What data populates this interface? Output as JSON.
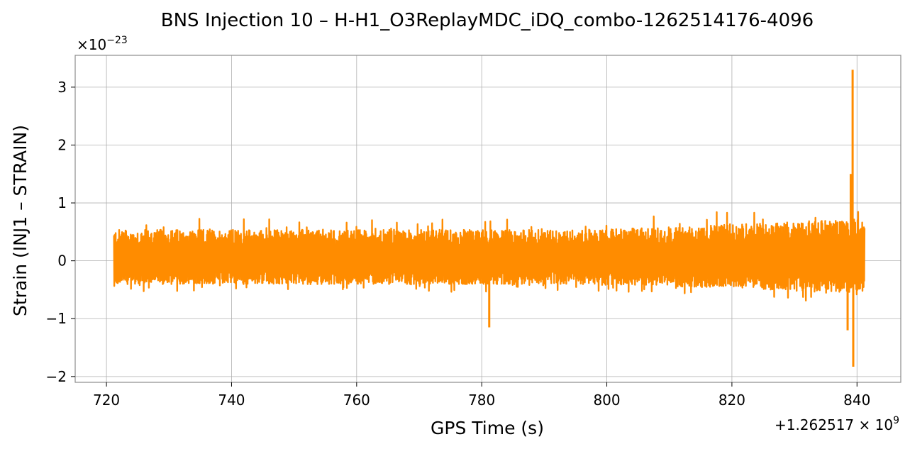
{
  "chart_data": {
    "type": "line",
    "title": "BNS Injection 10 – H-H1_O3ReplayMDC_iDQ_combo-1262514176-4096",
    "xlabel": "GPS Time (s)",
    "ylabel": "Strain (INJ1 – STRAIN)",
    "x_offset_label": "+1.262517×10^9",
    "y_multiplier_label": "×10^-23",
    "xlim": [
      715,
      847
    ],
    "ylim": [
      -2.1,
      3.55
    ],
    "xticks": [
      720,
      740,
      760,
      780,
      800,
      820,
      840
    ],
    "xtick_labels": [
      "720",
      "740",
      "760",
      "780",
      "800",
      "820",
      "840"
    ],
    "yticks": [
      -2,
      -1,
      0,
      1,
      2,
      3
    ],
    "ytick_labels": [
      "−2",
      "−1",
      "0",
      "1",
      "2",
      "3"
    ],
    "grid": true,
    "line_color": "#ff8c00",
    "series": [
      {
        "x_range": [
          721.2,
          841.2
        ],
        "typical_max": 0.6,
        "typical_min": -0.45,
        "spikes": [
          {
            "x": 781.2,
            "y": -1.15
          },
          {
            "x": 839.3,
            "y": 3.3
          },
          {
            "x": 839.4,
            "y": -1.83
          },
          {
            "x": 839.0,
            "y": 1.5
          },
          {
            "x": 838.5,
            "y": -1.2
          }
        ]
      }
    ]
  }
}
